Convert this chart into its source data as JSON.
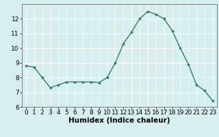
{
  "x": [
    0,
    1,
    2,
    3,
    4,
    5,
    6,
    7,
    8,
    9,
    10,
    11,
    12,
    13,
    14,
    15,
    16,
    17,
    18,
    19,
    20,
    21,
    22,
    23
  ],
  "y": [
    8.8,
    8.7,
    8.0,
    7.3,
    7.5,
    7.7,
    7.7,
    7.7,
    7.7,
    7.65,
    8.0,
    9.0,
    10.3,
    11.1,
    12.0,
    12.5,
    12.3,
    12.0,
    11.2,
    10.0,
    8.9,
    7.5,
    7.1,
    6.4
  ],
  "xlabel": "Humidex (Indice chaleur)",
  "ylim": [
    6,
    13
  ],
  "xlim": [
    -0.5,
    23.5
  ],
  "yticks": [
    6,
    7,
    8,
    9,
    10,
    11,
    12
  ],
  "xticks": [
    0,
    1,
    2,
    3,
    4,
    5,
    6,
    7,
    8,
    9,
    10,
    11,
    12,
    13,
    14,
    15,
    16,
    17,
    18,
    19,
    20,
    21,
    22,
    23
  ],
  "line_color": "#2e7d6e",
  "marker_color": "#2e7d6e",
  "bg_color": "#d6eeee",
  "grid_color": "#ffffff",
  "tick_label_fontsize": 6.5,
  "xlabel_fontsize": 7.5
}
